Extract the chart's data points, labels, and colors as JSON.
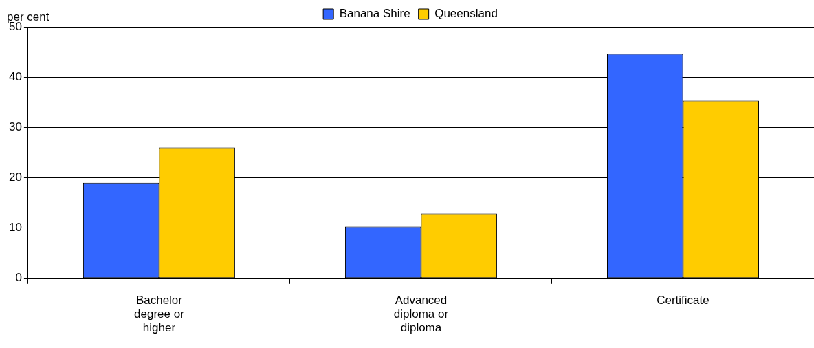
{
  "chart_data": {
    "type": "bar",
    "ylabel": "per cent",
    "categories": [
      "Bachelor degree or higher",
      "Advanced diploma or diploma",
      "Certificate"
    ],
    "series": [
      {
        "name": "Banana Shire",
        "color": "#3366ff",
        "values": [
          19.0,
          10.3,
          44.6
        ]
      },
      {
        "name": "Queensland",
        "color": "#ffcc00",
        "values": [
          26.0,
          12.9,
          35.3
        ]
      }
    ],
    "ylim": [
      0,
      50
    ],
    "yticks": [
      0,
      10,
      20,
      30,
      40,
      50
    ],
    "grid": "y",
    "legend": "top"
  }
}
